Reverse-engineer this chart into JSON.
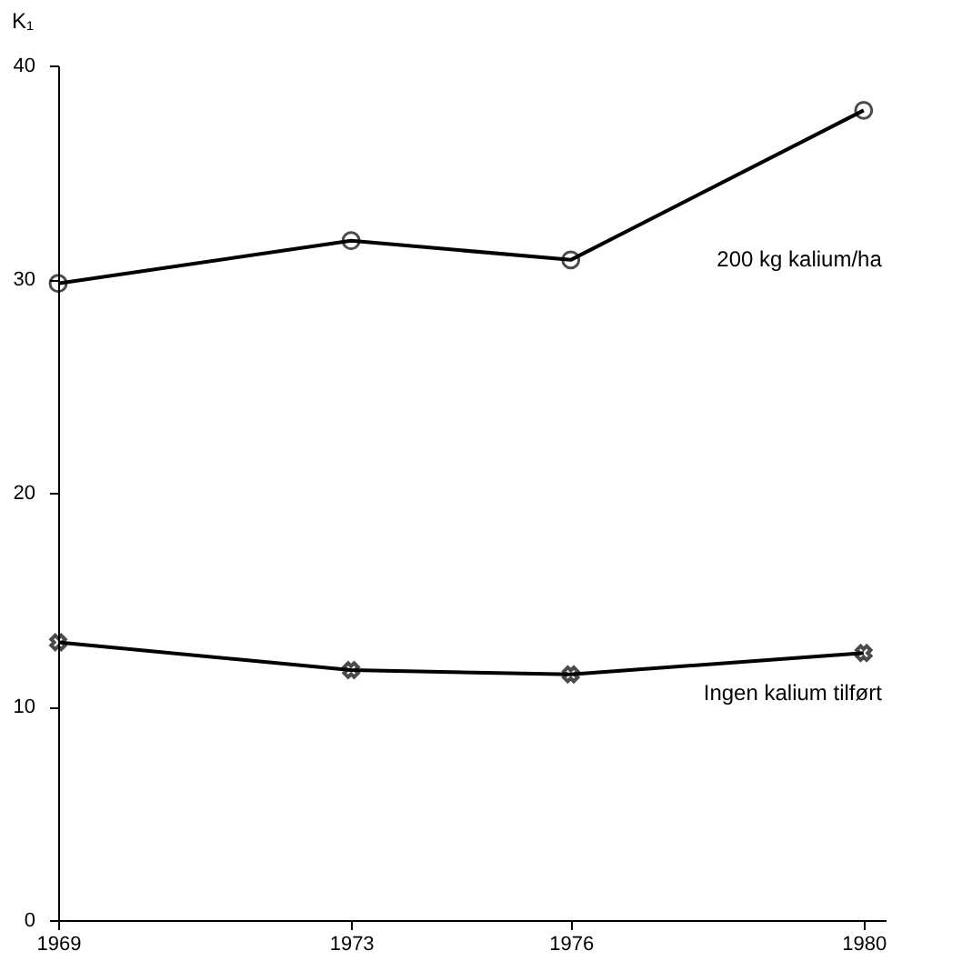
{
  "chart_data": {
    "type": "line",
    "ylabel": "K₁",
    "x": [
      1969,
      1973,
      1976,
      1980
    ],
    "series": [
      {
        "name": "200 kg kalium/ha",
        "color": "#000000",
        "marker": "circle",
        "values": [
          29.8,
          31.8,
          30.9,
          37.9
        ]
      },
      {
        "name": "Ingen kalium tilført",
        "color": "#000000",
        "marker": "cross",
        "values": [
          13.0,
          11.7,
          11.5,
          12.5
        ]
      }
    ],
    "xlim": [
      1969,
      1980.3
    ],
    "xticks": [
      1969,
      1973,
      1976,
      1980
    ],
    "ylim": [
      0,
      40
    ],
    "yticks": [
      0,
      10,
      20,
      30,
      40
    ],
    "grid": false,
    "legend": false,
    "line_style": "solid"
  }
}
